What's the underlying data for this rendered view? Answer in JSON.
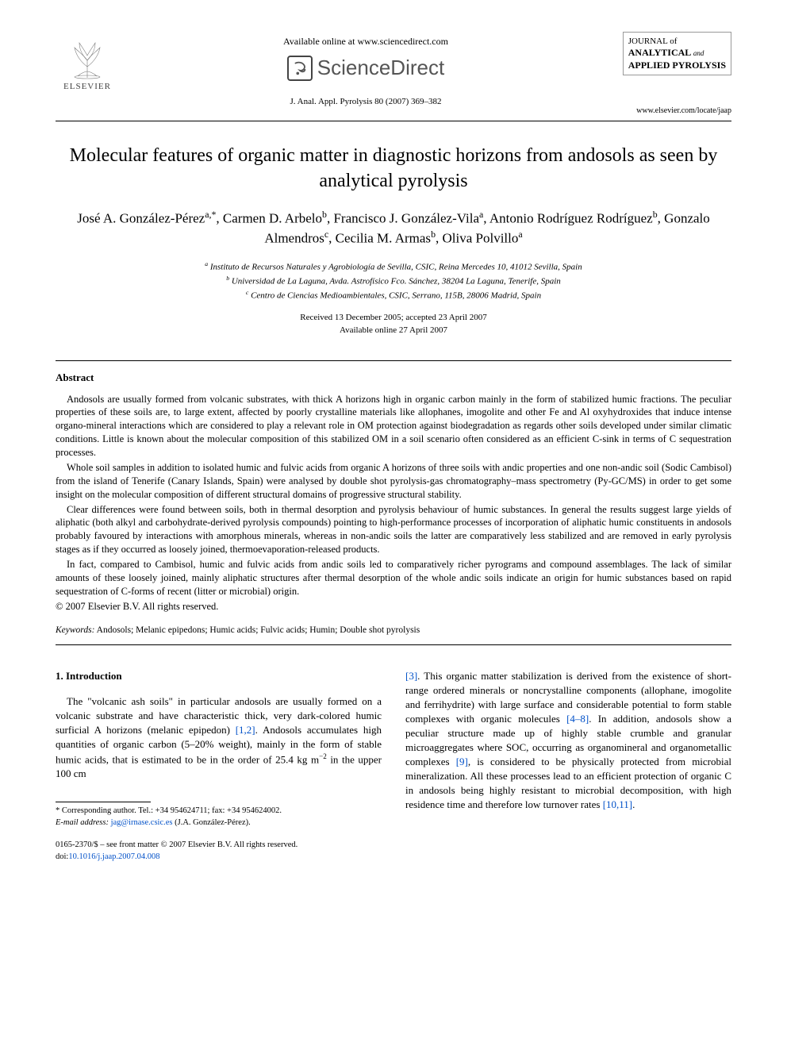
{
  "header": {
    "available_online": "Available online at www.sciencedirect.com",
    "sciencedirect": "ScienceDirect",
    "journal_ref": "J. Anal. Appl. Pyrolysis 80 (2007) 369–382",
    "elsevier": "ELSEVIER",
    "journal_block": {
      "line1": "JOURNAL of",
      "line2a": "ANALYTICAL",
      "line2b": "and",
      "line3": "APPLIED PYROLYSIS"
    },
    "journal_url": "www.elsevier.com/locate/jaap"
  },
  "title": "Molecular features of organic matter in diagnostic horizons from andosols as seen by analytical pyrolysis",
  "authors_html": "José A. González-Pérez<span class='sup'>a,*</span>, Carmen D. Arbelo<span class='sup'>b</span>, Francisco J. González-Vila<span class='sup'>a</span>, Antonio Rodríguez Rodríguez<span class='sup'>b</span>, Gonzalo Almendros<span class='sup'>c</span>, Cecilia M. Armas<span class='sup'>b</span>, Oliva Polvillo<span class='sup'>a</span>",
  "affiliations": {
    "a": "Instituto de Recursos Naturales y Agrobiología de Sevilla, CSIC, Reina Mercedes 10, 41012 Sevilla, Spain",
    "b": "Universidad de La Laguna, Avda. Astrofísico Fco. Sánchez, 38204 La Laguna, Tenerife, Spain",
    "c": "Centro de Ciencias Medioambientales, CSIC, Serrano, 115B, 28006 Madrid, Spain"
  },
  "dates": {
    "received": "Received 13 December 2005; accepted 23 April 2007",
    "online": "Available online 27 April 2007"
  },
  "abstract": {
    "heading": "Abstract",
    "p1": "Andosols are usually formed from volcanic substrates, with thick A horizons high in organic carbon mainly in the form of stabilized humic fractions. The peculiar properties of these soils are, to large extent, affected by poorly crystalline materials like allophanes, imogolite and other Fe and Al oxyhydroxides that induce intense organo-mineral interactions which are considered to play a relevant role in OM protection against biodegradation as regards other soils developed under similar climatic conditions. Little is known about the molecular composition of this stabilized OM in a soil scenario often considered as an efficient C-sink in terms of C sequestration processes.",
    "p2": "Whole soil samples in addition to isolated humic and fulvic acids from organic A horizons of three soils with andic properties and one non-andic soil (Sodic Cambisol) from the island of Tenerife (Canary Islands, Spain) were analysed by double shot pyrolysis-gas chromatography–mass spectrometry (Py-GC/MS) in order to get some insight on the molecular composition of different structural domains of progressive structural stability.",
    "p3": "Clear differences were found between soils, both in thermal desorption and pyrolysis behaviour of humic substances. In general the results suggest large yields of aliphatic (both alkyl and carbohydrate-derived pyrolysis compounds) pointing to high-performance processes of incorporation of aliphatic humic constituents in andosols probably favoured by interactions with amorphous minerals, whereas in non-andic soils the latter are comparatively less stabilized and are removed in early pyrolysis stages as if they occurred as loosely joined, thermoevaporation-released products.",
    "p4": "In fact, compared to Cambisol, humic and fulvic acids from andic soils led to comparatively richer pyrograms and compound assemblages. The lack of similar amounts of these loosely joined, mainly aliphatic structures after thermal desorption of the whole andic soils indicate an origin for humic substances based on rapid sequestration of C-forms of recent (litter or microbial) origin.",
    "copyright": "© 2007 Elsevier B.V. All rights reserved."
  },
  "keywords": {
    "label": "Keywords:",
    "text": "Andosols; Melanic epipedons; Humic acids; Fulvic acids; Humin; Double shot pyrolysis"
  },
  "intro": {
    "heading": "1. Introduction",
    "col1_html": "The \"volcanic ash soils\" in particular andosols are usually formed on a volcanic substrate and have characteristic thick, very dark-colored humic surficial A horizons (melanic epipedon) <span class='ref-link'>[1,2]</span>. Andosols accumulates high quantities of organic carbon (5–20% weight), mainly in the form of stable humic acids, that is estimated to be in the order of 25.4 kg m<span class='sup'>−2</span> in the upper 100 cm",
    "col2_html": "<span class='ref-link'>[3]</span>. This organic matter stabilization is derived from the existence of short-range ordered minerals or noncrystalline components (allophane, imogolite and ferrihydrite) with large surface and considerable potential to form stable complexes with organic molecules <span class='ref-link'>[4–8]</span>. In addition, andosols show a peculiar structure made up of highly stable crumble and granular microaggregates where SOC, occurring as organomineral and organometallic complexes <span class='ref-link'>[9]</span>, is considered to be physically protected from microbial mineralization. All these processes lead to an efficient protection of organic C in andosols being highly resistant to microbial decomposition, with high residence time and therefore low turnover rates <span class='ref-link'>[10,11]</span>."
  },
  "footnotes": {
    "corresponding": "* Corresponding author. Tel.: +34 954624711; fax: +34 954624002.",
    "email_label": "E-mail address:",
    "email": "jag@irnase.csic.es",
    "email_attrib": "(J.A. González-Pérez)."
  },
  "footer": {
    "line1": "0165-2370/$ – see front matter © 2007 Elsevier B.V. All rights reserved.",
    "doi_label": "doi:",
    "doi": "10.1016/j.jaap.2007.04.008"
  },
  "colors": {
    "link": "#0050c8",
    "text": "#000000",
    "bg": "#ffffff"
  }
}
